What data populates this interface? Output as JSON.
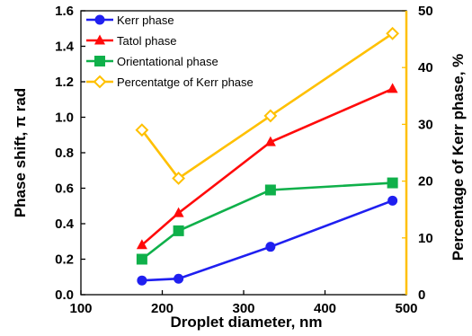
{
  "chart_data": {
    "type": "line",
    "title": "",
    "xlabel": "Droplet diameter, nm",
    "ylabel": "Phase shift, π rad",
    "y2label": "Percentage of Kerr phase, %",
    "xlim": [
      100,
      500
    ],
    "ylim": [
      0.0,
      1.6
    ],
    "y2lim": [
      0,
      50
    ],
    "xticks": [
      "100",
      "200",
      "300",
      "400",
      "500"
    ],
    "yticks": [
      "0.0",
      "0.2",
      "0.4",
      "0.6",
      "0.8",
      "1.0",
      "1.2",
      "1.4",
      "1.6"
    ],
    "y2ticks": [
      "0",
      "10",
      "20",
      "30",
      "40",
      "50"
    ],
    "grid": false,
    "legend_position": "top-left",
    "series": [
      {
        "name": "Kerr phase",
        "axis": "left",
        "color": "#1f1ff0",
        "marker": "circle",
        "x": [
          175,
          220,
          333,
          483
        ],
        "values": [
          0.08,
          0.09,
          0.27,
          0.53
        ]
      },
      {
        "name": "Tatol phase",
        "axis": "left",
        "color": "#ff0a0a",
        "marker": "triangle",
        "x": [
          175,
          220,
          333,
          483
        ],
        "values": [
          0.28,
          0.46,
          0.86,
          1.16
        ]
      },
      {
        "name": "Orientational phase",
        "axis": "left",
        "color": "#0fb04a",
        "marker": "square",
        "x": [
          175,
          220,
          333,
          483
        ],
        "values": [
          0.2,
          0.36,
          0.59,
          0.63
        ]
      },
      {
        "name": "Percentatge of Kerr phase",
        "axis": "right",
        "color": "#ffc000",
        "marker": "diamond-open",
        "x": [
          175,
          220,
          333,
          483
        ],
        "values": [
          29,
          20.5,
          31.5,
          46
        ]
      }
    ]
  }
}
